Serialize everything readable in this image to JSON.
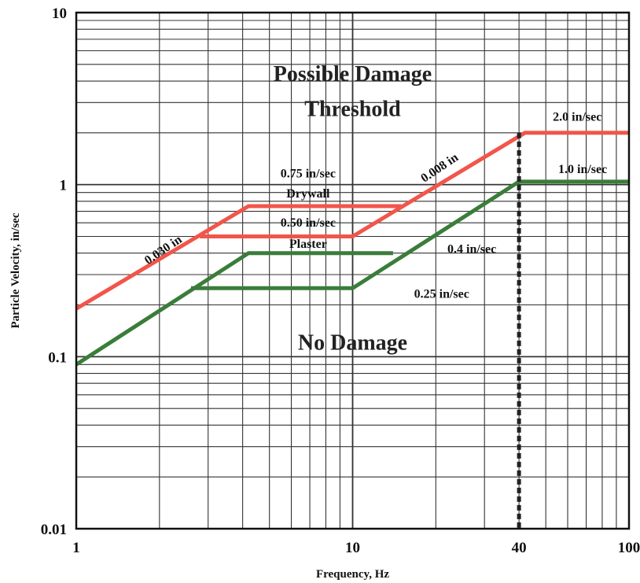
{
  "chart_data": {
    "type": "line",
    "title": "",
    "xlabel": "Frequency, Hz",
    "ylabel": "Particle Velocity, in/sec",
    "x_scale": "log",
    "y_scale": "log",
    "xlim": [
      1,
      100
    ],
    "ylim": [
      0.01,
      10
    ],
    "grid": true,
    "x_ticks": [
      {
        "value": 1,
        "label": "1"
      },
      {
        "value": 10,
        "label": "10"
      },
      {
        "value": 40,
        "label": "40"
      },
      {
        "value": 100,
        "label": "100"
      }
    ],
    "y_ticks": [
      {
        "value": 0.01,
        "label": "0.01"
      },
      {
        "value": 0.1,
        "label": "0.1"
      },
      {
        "value": 1,
        "label": "1"
      },
      {
        "value": 10,
        "label": "10"
      }
    ],
    "series": [
      {
        "key": "drywall",
        "color": "#f2554a",
        "points": [
          [
            1,
            0.19
          ],
          [
            4.2,
            0.75
          ],
          [
            15,
            0.75
          ]
        ]
      },
      {
        "key": "plaster",
        "color": "#f2554a",
        "points": [
          [
            2.8,
            0.5
          ],
          [
            10,
            0.5
          ],
          [
            42,
            2.0
          ],
          [
            100,
            2.0
          ]
        ]
      },
      {
        "key": "upper-green",
        "color": "#3a7d3a",
        "points": [
          [
            1,
            0.09
          ],
          [
            4.2,
            0.4
          ],
          [
            14,
            0.4
          ]
        ]
      },
      {
        "key": "lower-green",
        "color": "#3a7d3a",
        "points": [
          [
            2.6,
            0.25
          ],
          [
            10,
            0.25
          ],
          [
            40,
            1.04
          ],
          [
            100,
            1.04
          ]
        ]
      }
    ],
    "reference_line": {
      "x": 40,
      "color": "#222222",
      "style": "dashed"
    },
    "annotations": [
      {
        "text": "Possible Damage",
        "x": 10,
        "y": 4.0,
        "style": "region"
      },
      {
        "text": "Threshold",
        "x": 10,
        "y": 2.5,
        "style": "region"
      },
      {
        "text": "No Damage",
        "x": 10,
        "y": 0.11,
        "style": "region"
      },
      {
        "text": "0.75 in/sec",
        "x": 6.9,
        "y": 1.1,
        "style": "label"
      },
      {
        "text": "Drywall",
        "x": 6.9,
        "y": 0.84,
        "style": "label"
      },
      {
        "text": "0.50 in/sec",
        "x": 6.9,
        "y": 0.57,
        "style": "label"
      },
      {
        "text": "Plaster",
        "x": 6.9,
        "y": 0.43,
        "style": "label"
      },
      {
        "text": "0.4 in/sec",
        "x": 27,
        "y": 0.4,
        "style": "label"
      },
      {
        "text": "0.25 in/sec",
        "x": 21,
        "y": 0.22,
        "style": "label"
      },
      {
        "text": "2.0 in/sec",
        "x": 65,
        "y": 2.35,
        "style": "label"
      },
      {
        "text": "1.0 in/sec",
        "x": 68,
        "y": 1.17,
        "style": "label"
      },
      {
        "text": "0.030 in",
        "x": 2.1,
        "y": 0.4,
        "style": "label",
        "angle": -34
      },
      {
        "text": "0.008 in",
        "x": 21,
        "y": 1.2,
        "style": "label",
        "angle": -34
      }
    ]
  }
}
